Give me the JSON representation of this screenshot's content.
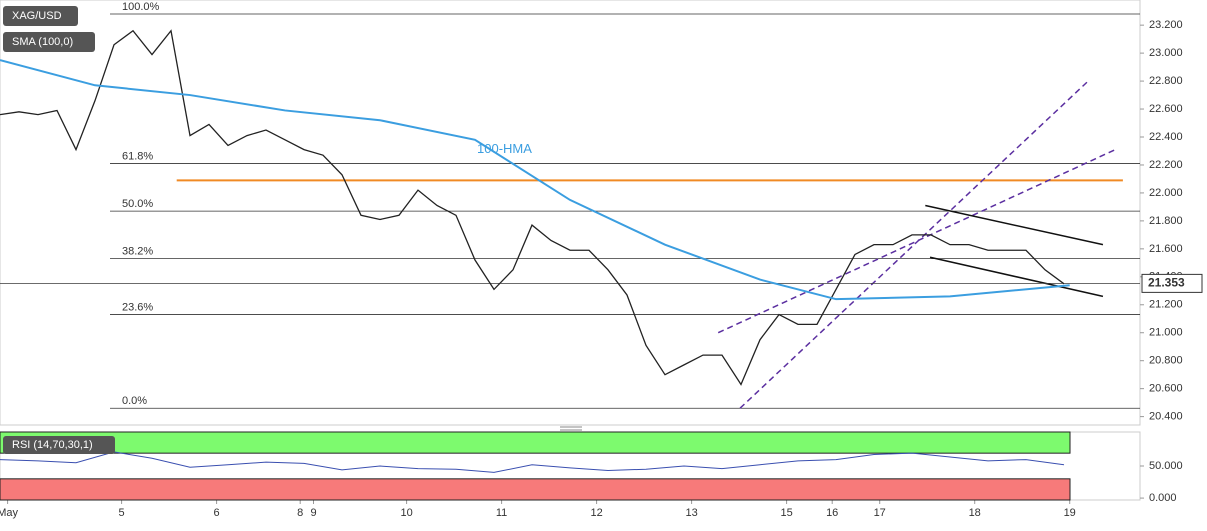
{
  "chart_data": [
    {
      "type": "price",
      "symbol": "XAG/USD",
      "indicator": "SMA (100,0)",
      "xlim": [
        0,
        120
      ],
      "ylim": [
        20.34,
        23.38
      ],
      "xticks": [
        {
          "value": 0.8,
          "label": "May"
        },
        {
          "value": 12.8,
          "label": "5"
        },
        {
          "value": 22.8,
          "label": "6"
        },
        {
          "value": 31.6,
          "label": "8"
        },
        {
          "value": 33,
          "label": "9"
        },
        {
          "value": 42.8,
          "label": "10"
        },
        {
          "value": 52.8,
          "label": "11"
        },
        {
          "value": 62.8,
          "label": "12"
        },
        {
          "value": 72.8,
          "label": "13"
        },
        {
          "value": 82.8,
          "label": "15"
        },
        {
          "value": 87.6,
          "label": "16"
        },
        {
          "value": 92.6,
          "label": "17"
        },
        {
          "value": 102.6,
          "label": "18"
        },
        {
          "value": 112.6,
          "label": "19"
        }
      ],
      "yticks": [
        {
          "value": 20.4,
          "label": "20.400"
        },
        {
          "value": 20.6,
          "label": "20.600"
        },
        {
          "value": 20.8,
          "label": "20.800"
        },
        {
          "value": 21.0,
          "label": "21.000"
        },
        {
          "value": 21.2,
          "label": "21.200"
        },
        {
          "value": 21.4,
          "label": "21.400"
        },
        {
          "value": 21.6,
          "label": "21.600"
        },
        {
          "value": 21.8,
          "label": "21.800"
        },
        {
          "value": 22.0,
          "label": "22.000"
        },
        {
          "value": 22.2,
          "label": "22.200"
        },
        {
          "value": 22.4,
          "label": "22.400"
        },
        {
          "value": 22.6,
          "label": "22.600"
        },
        {
          "value": 22.8,
          "label": "22.800"
        },
        {
          "value": 23.0,
          "label": "23.000"
        },
        {
          "value": 23.2,
          "label": "23.200"
        }
      ],
      "current_price": 21.353,
      "series": [
        {
          "color": "#222222",
          "x": [
            0,
            2,
            4,
            6,
            8,
            10,
            12,
            14,
            16,
            18,
            20,
            22,
            24,
            26,
            28,
            30,
            32,
            34,
            36,
            38,
            40,
            42,
            44,
            46,
            48,
            50,
            52,
            54,
            56,
            58,
            60,
            62,
            64,
            66,
            68,
            70,
            72,
            74,
            76,
            78,
            80,
            82,
            84,
            86,
            88,
            90,
            92,
            94,
            96,
            98,
            100,
            102,
            104,
            106,
            108,
            110,
            112
          ],
          "values": [
            22.56,
            22.58,
            22.56,
            22.59,
            22.31,
            22.66,
            23.06,
            23.16,
            22.99,
            23.16,
            22.41,
            22.49,
            22.34,
            22.41,
            22.45,
            22.38,
            22.31,
            22.27,
            22.13,
            21.84,
            21.81,
            21.84,
            22.02,
            21.91,
            21.84,
            21.52,
            21.31,
            21.45,
            21.77,
            21.66,
            21.59,
            21.59,
            21.45,
            21.27,
            20.91,
            20.7,
            20.77,
            20.84,
            20.84,
            20.63,
            20.95,
            21.13,
            21.06,
            21.06,
            21.31,
            21.56,
            21.63,
            21.63,
            21.7,
            21.7,
            21.63,
            21.63,
            21.59,
            21.59,
            21.59,
            21.45,
            21.35
          ]
        },
        {
          "name": "100-HMA",
          "color": "#3b9ee0",
          "x": [
            0,
            10,
            20,
            30,
            40,
            50,
            60,
            70,
            80,
            88,
            100,
            112.6
          ],
          "values": [
            22.95,
            22.77,
            22.7,
            22.59,
            22.52,
            22.38,
            21.95,
            21.63,
            21.38,
            21.24,
            21.26,
            21.34
          ]
        }
      ],
      "fib_levels": [
        {
          "label": "100.0%",
          "value": 23.28
        },
        {
          "label": "61.8%",
          "value": 22.21
        },
        {
          "label": "50.0%",
          "value": 21.87
        },
        {
          "label": "38.2%",
          "value": 21.53
        },
        {
          "label": "23.6%",
          "value": 21.13
        },
        {
          "label": "0.0%",
          "value": 20.46
        }
      ],
      "support_line": {
        "color": "#f08a24",
        "x": [
          18.6,
          118.2
        ],
        "y": [
          22.09,
          22.09
        ]
      },
      "trend_lines": [
        {
          "color": "#5b2fa0",
          "dashed": true,
          "x": [
            77.9,
            114.7
          ],
          "y": [
            20.46,
            22.81
          ]
        },
        {
          "color": "#5b2fa0",
          "dashed": true,
          "x": [
            75.6,
            117.4
          ],
          "y": [
            21.0,
            22.31
          ]
        },
        {
          "color": "#111111",
          "dashed": false,
          "x": [
            97.4,
            116.1
          ],
          "y": [
            21.91,
            21.63
          ]
        },
        {
          "color": "#111111",
          "dashed": false,
          "x": [
            97.9,
            116.1
          ],
          "y": [
            21.54,
            21.26
          ]
        }
      ]
    },
    {
      "type": "rsi",
      "title": "RSI (14,70,30,1)",
      "xlim": [
        0,
        120
      ],
      "ylim": [
        -3,
        103
      ],
      "yticks": [
        {
          "value": 0,
          "label": "0.000"
        },
        {
          "value": 50,
          "label": "50.000"
        }
      ],
      "overbought": 70,
      "oversold": 30,
      "series": [
        {
          "color": "#3a4fb0",
          "x": [
            0,
            4,
            8,
            12,
            16,
            20,
            24,
            28,
            32,
            36,
            40,
            44,
            48,
            52,
            56,
            60,
            64,
            68,
            72,
            76,
            80,
            84,
            88,
            92,
            96,
            100,
            104,
            108,
            112
          ],
          "values": [
            60,
            58,
            55,
            72,
            62,
            48,
            52,
            56,
            54,
            44,
            50,
            46,
            45,
            40,
            52,
            47,
            43,
            45,
            50,
            46,
            52,
            58,
            60,
            68,
            70,
            64,
            58,
            60,
            52
          ]
        }
      ]
    }
  ]
}
